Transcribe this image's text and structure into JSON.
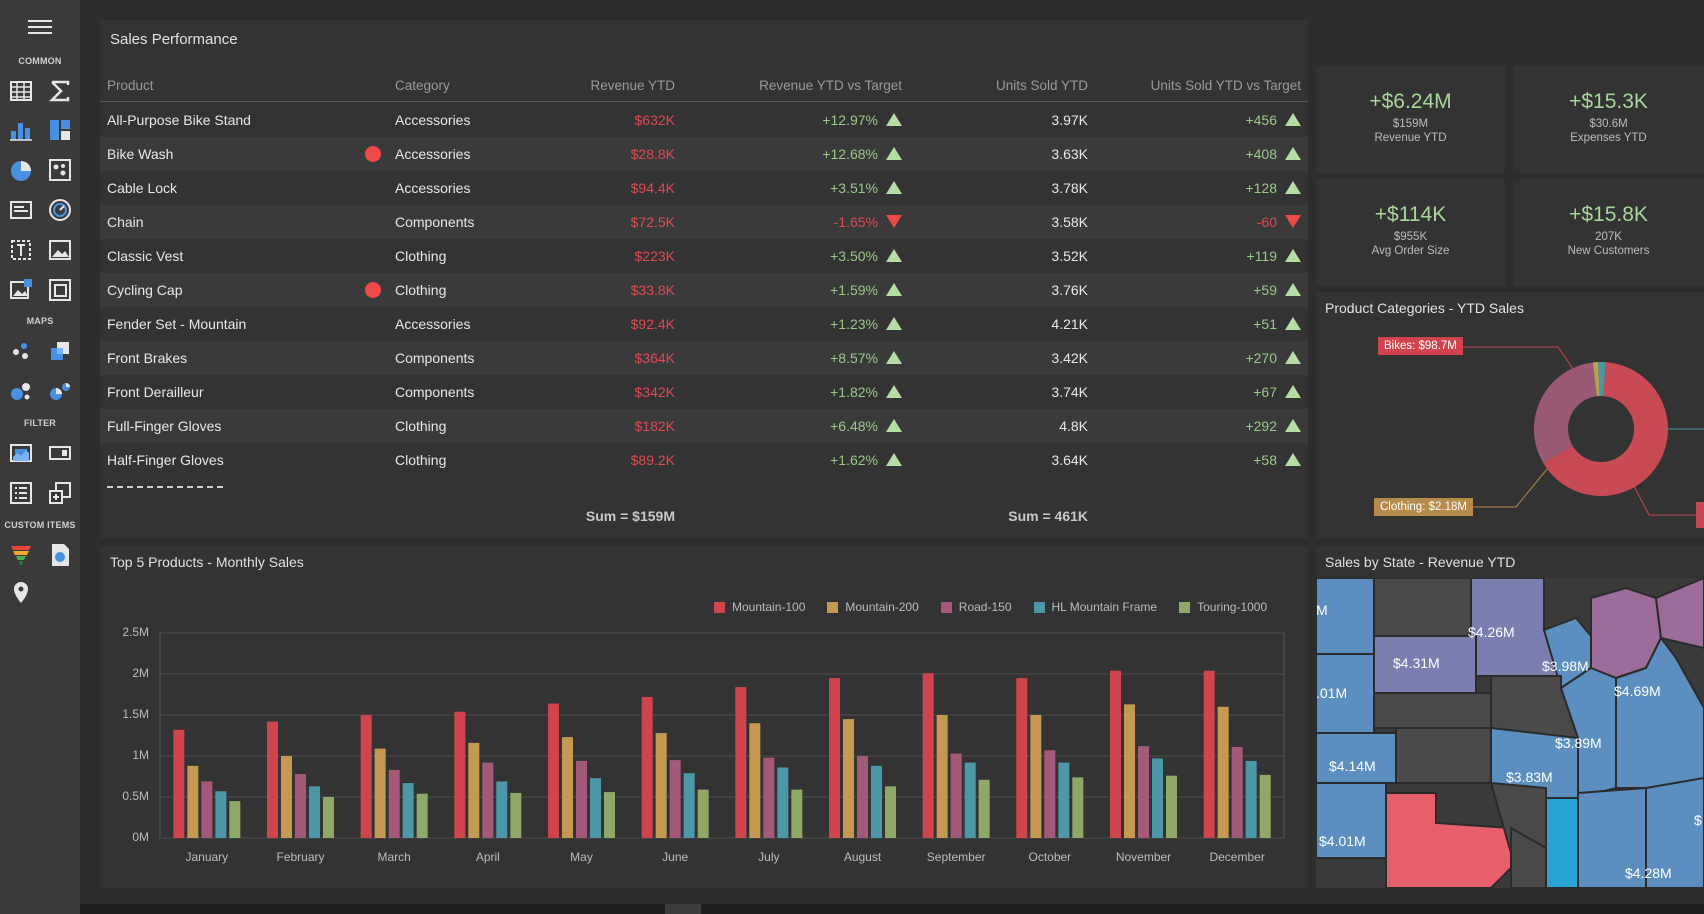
{
  "sidebar": {
    "sections": [
      "COMMON",
      "MAPS",
      "FILTER",
      "CUSTOM ITEMS"
    ],
    "icons": [
      "grid-icon",
      "pivot-sigma-icon",
      "bar-chart-icon",
      "treemap-icon",
      "pie-chart-icon",
      "scatter-icon",
      "card-icon",
      "gauge-icon",
      "text-box-icon",
      "image-icon",
      "bound-image-icon",
      "group-icon",
      "geo-point-map-icon",
      "choropleth-map-icon",
      "bubble-map-icon",
      "pie-map-icon",
      "range-filter-icon",
      "combo-box-icon",
      "list-box-icon",
      "tree-view-icon",
      "funnel-icon",
      "web-page-icon",
      "location-pin-icon"
    ]
  },
  "sales": {
    "title": "Sales Performance",
    "columns": [
      "Product",
      "Category",
      "Revenue YTD",
      "Revenue YTD vs Target",
      "Units Sold YTD",
      "Units Sold YTD vs Target"
    ],
    "rows": [
      {
        "product": "All-Purpose Bike Stand",
        "flag": false,
        "category": "Accessories",
        "revenue": "$632K",
        "rev_vs": "+12.97%",
        "rev_dir": "up",
        "units": "3.97K",
        "units_vs": "+456",
        "units_dir": "up"
      },
      {
        "product": "Bike Wash",
        "flag": true,
        "category": "Accessories",
        "revenue": "$28.8K",
        "rev_vs": "+12.68%",
        "rev_dir": "up",
        "units": "3.63K",
        "units_vs": "+408",
        "units_dir": "up"
      },
      {
        "product": "Cable Lock",
        "flag": false,
        "category": "Accessories",
        "revenue": "$94.4K",
        "rev_vs": "+3.51%",
        "rev_dir": "up",
        "units": "3.78K",
        "units_vs": "+128",
        "units_dir": "up"
      },
      {
        "product": "Chain",
        "flag": false,
        "category": "Components",
        "revenue": "$72.5K",
        "rev_vs": "-1.65%",
        "rev_dir": "down",
        "units": "3.58K",
        "units_vs": "-60",
        "units_dir": "down"
      },
      {
        "product": "Classic Vest",
        "flag": false,
        "category": "Clothing",
        "revenue": "$223K",
        "rev_vs": "+3.50%",
        "rev_dir": "up",
        "units": "3.52K",
        "units_vs": "+119",
        "units_dir": "up"
      },
      {
        "product": "Cycling Cap",
        "flag": true,
        "category": "Clothing",
        "revenue": "$33.8K",
        "rev_vs": "+1.59%",
        "rev_dir": "up",
        "units": "3.76K",
        "units_vs": "+59",
        "units_dir": "up"
      },
      {
        "product": "Fender Set - Mountain",
        "flag": false,
        "category": "Accessories",
        "revenue": "$92.4K",
        "rev_vs": "+1.23%",
        "rev_dir": "up",
        "units": "4.21K",
        "units_vs": "+51",
        "units_dir": "up"
      },
      {
        "product": "Front Brakes",
        "flag": false,
        "category": "Components",
        "revenue": "$364K",
        "rev_vs": "+8.57%",
        "rev_dir": "up",
        "units": "3.42K",
        "units_vs": "+270",
        "units_dir": "up"
      },
      {
        "product": "Front Derailleur",
        "flag": false,
        "category": "Components",
        "revenue": "$342K",
        "rev_vs": "+1.82%",
        "rev_dir": "up",
        "units": "3.74K",
        "units_vs": "+67",
        "units_dir": "up"
      },
      {
        "product": "Full-Finger Gloves",
        "flag": false,
        "category": "Clothing",
        "revenue": "$182K",
        "rev_vs": "+6.48%",
        "rev_dir": "up",
        "units": "4.8K",
        "units_vs": "+292",
        "units_dir": "up"
      },
      {
        "product": "Half-Finger Gloves",
        "flag": false,
        "category": "Clothing",
        "revenue": "$89.2K",
        "rev_vs": "+1.62%",
        "rev_dir": "up",
        "units": "3.64K",
        "units_vs": "+58",
        "units_dir": "up"
      }
    ],
    "footer": {
      "revenue_sum": "Sum = $159M",
      "units_sum": "Sum = 461K"
    }
  },
  "kpis": [
    {
      "value": "+$6.24M",
      "sub": "$159M",
      "label": "Revenue YTD"
    },
    {
      "value": "+$15.3K",
      "sub": "$30.6M",
      "label": "Expenses YTD"
    },
    {
      "value": "+$114K",
      "sub": "$955K",
      "label": "Avg Order Size"
    },
    {
      "value": "+$15.8K",
      "sub": "207K",
      "label": "New Customers"
    }
  ],
  "categories_panel": {
    "title": "Product Categories - YTD Sales",
    "callouts": [
      {
        "label": "Bikes: $98.7M",
        "color": "#d0444e"
      },
      {
        "label": "Clothing: $2.18M",
        "color": "#b58a4a"
      }
    ],
    "slice_colors": [
      "#c74a55",
      "#9a5a76",
      "#b8a257",
      "#4c95a3"
    ]
  },
  "chart_data": {
    "type": "bar",
    "title": "Top 5 Products - Monthly Sales",
    "categories": [
      "January",
      "February",
      "March",
      "April",
      "May",
      "June",
      "July",
      "August",
      "September",
      "October",
      "November",
      "December"
    ],
    "yticks": [
      "0M",
      "0.5M",
      "1M",
      "1.5M",
      "2M",
      "2.5M"
    ],
    "ylim": [
      0,
      2.5
    ],
    "colors": [
      "#d0444e",
      "#c49a52",
      "#a35a7a",
      "#4d98a8",
      "#8fa867"
    ],
    "series": [
      {
        "name": "Mountain-100",
        "values": [
          1.32,
          1.42,
          1.5,
          1.54,
          1.64,
          1.72,
          1.84,
          1.95,
          2.01,
          1.95,
          2.04,
          2.04
        ]
      },
      {
        "name": "Mountain-200",
        "values": [
          0.88,
          1.0,
          1.09,
          1.16,
          1.23,
          1.28,
          1.4,
          1.45,
          1.5,
          1.5,
          1.63,
          1.6
        ]
      },
      {
        "name": "Road-150",
        "values": [
          0.69,
          0.78,
          0.83,
          0.92,
          0.94,
          0.95,
          0.98,
          1.0,
          1.03,
          1.07,
          1.12,
          1.11
        ]
      },
      {
        "name": "HL Mountain Frame",
        "values": [
          0.57,
          0.63,
          0.67,
          0.69,
          0.73,
          0.79,
          0.86,
          0.88,
          0.92,
          0.92,
          0.97,
          0.94
        ]
      },
      {
        "name": "Touring-1000",
        "values": [
          0.45,
          0.5,
          0.54,
          0.55,
          0.56,
          0.59,
          0.59,
          0.63,
          0.71,
          0.74,
          0.76,
          0.77
        ]
      }
    ]
  },
  "map_panel": {
    "title": "Sales by State - Revenue YTD",
    "labels": [
      "M",
      "$4.26M",
      "$4.31M",
      "$3.98M",
      "$4.69M",
      ".01M",
      "$3.89M",
      "$4.14M",
      "$3.83M",
      "$4.01M",
      "$4.28M",
      "$"
    ]
  }
}
